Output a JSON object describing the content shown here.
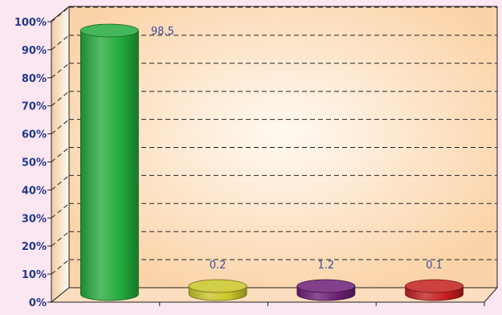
{
  "chart_data": {
    "type": "bar",
    "title": "",
    "xlabel": "",
    "ylabel": "",
    "ylim": [
      0,
      100
    ],
    "y_ticks": [
      "0%",
      "10%",
      "20%",
      "30%",
      "40%",
      "50%",
      "60%",
      "70%",
      "80%",
      "90%",
      "100%"
    ],
    "categories": [
      "",
      "",
      "",
      ""
    ],
    "values": [
      98.5,
      0.2,
      1.2,
      0.1
    ],
    "data_labels": [
      "98.5",
      "0.2",
      "1.2",
      "0.1"
    ],
    "bar_colors": [
      "#22aa3c",
      "#c9c526",
      "#6b1e74",
      "#c41e1e"
    ],
    "grid": "dashed horizontal",
    "legend": "none",
    "style": "3d cylinders"
  },
  "colors": {
    "page_background": "#fbe6f2",
    "plot_background": "#fbd3a8",
    "plot_background_center": "#fffaf2",
    "tick_label": "#243a8a",
    "data_label": "#3a4d9c",
    "grid": "#222222"
  }
}
